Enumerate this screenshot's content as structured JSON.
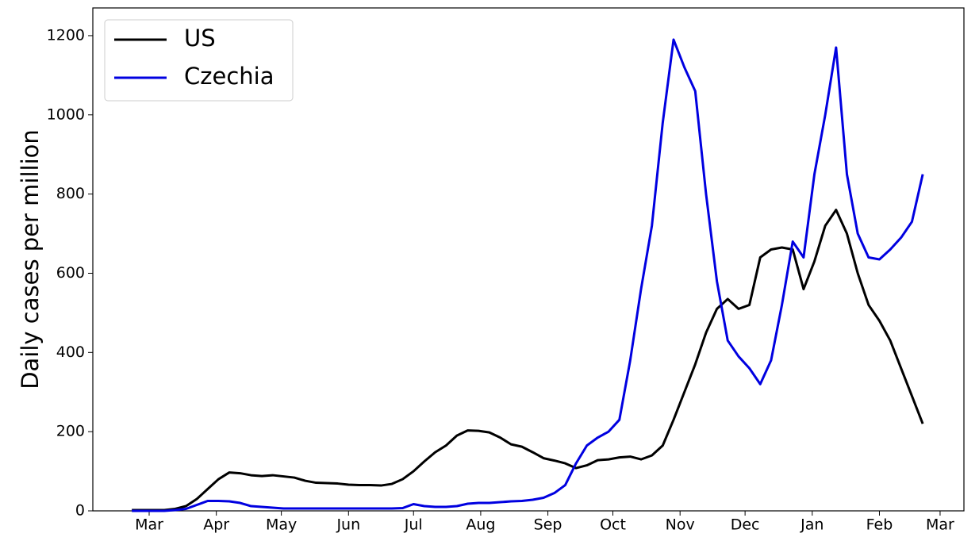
{
  "chart_data": {
    "type": "line",
    "ylabel": "Daily cases per million",
    "x": [
      -8,
      -3,
      2,
      7,
      12,
      17,
      22,
      27,
      32,
      37,
      42,
      47,
      52,
      57,
      62,
      67,
      72,
      77,
      82,
      87,
      92,
      97,
      102,
      107,
      112,
      117,
      122,
      127,
      132,
      137,
      142,
      147,
      152,
      157,
      162,
      167,
      172,
      177,
      182,
      187,
      192,
      197,
      202,
      207,
      212,
      217,
      222,
      227,
      232,
      237,
      242,
      247,
      252,
      257,
      262,
      267,
      272,
      277,
      282,
      287,
      292,
      297,
      302,
      307,
      312,
      317,
      322,
      327,
      332,
      337,
      342,
      347,
      352,
      357
    ],
    "series": [
      {
        "name": "US",
        "color": "#000000",
        "values": [
          2,
          2,
          2,
          2,
          5,
          12,
          30,
          55,
          80,
          97,
          95,
          90,
          88,
          90,
          87,
          84,
          76,
          71,
          70,
          69,
          66,
          65,
          65,
          64,
          68,
          80,
          100,
          125,
          148,
          165,
          190,
          203,
          202,
          198,
          185,
          168,
          162,
          148,
          133,
          127,
          120,
          108,
          115,
          128,
          130,
          135,
          137,
          130,
          140,
          165,
          230,
          300,
          370,
          450,
          510,
          535,
          510,
          520,
          640,
          660,
          665,
          660,
          560,
          630,
          720,
          760,
          700,
          600,
          520,
          480,
          430,
          360,
          290,
          220
        ]
      },
      {
        "name": "Czechia",
        "color": "#0000e0",
        "values": [
          0,
          0,
          0,
          0,
          2,
          5,
          15,
          25,
          25,
          24,
          20,
          12,
          10,
          8,
          6,
          6,
          6,
          6,
          6,
          6,
          6,
          6,
          6,
          6,
          6,
          7,
          17,
          12,
          10,
          10,
          12,
          18,
          20,
          20,
          22,
          24,
          25,
          28,
          33,
          45,
          65,
          120,
          165,
          185,
          200,
          230,
          380,
          560,
          720,
          980,
          1190,
          1120,
          1060,
          800,
          580,
          430,
          390,
          360,
          320,
          380,
          520,
          680,
          640,
          850,
          1000,
          1170,
          850,
          700,
          640,
          635,
          660,
          690,
          730,
          850
        ]
      }
    ],
    "xlim": [
      -26,
      376
    ],
    "xticks": [
      {
        "value": 0,
        "label": "Mar"
      },
      {
        "value": 31,
        "label": "Apr"
      },
      {
        "value": 61,
        "label": "May"
      },
      {
        "value": 92,
        "label": "Jun"
      },
      {
        "value": 122,
        "label": "Jul"
      },
      {
        "value": 153,
        "label": "Aug"
      },
      {
        "value": 184,
        "label": "Sep"
      },
      {
        "value": 214,
        "label": "Oct"
      },
      {
        "value": 245,
        "label": "Nov"
      },
      {
        "value": 275,
        "label": "Dec"
      },
      {
        "value": 306,
        "label": "Jan"
      },
      {
        "value": 337,
        "label": "Feb"
      },
      {
        "value": 365,
        "label": "Mar"
      }
    ],
    "ylim": [
      0,
      1270
    ],
    "yticks": [
      0,
      200,
      400,
      600,
      800,
      1000,
      1200
    ],
    "legend": "upper-left"
  }
}
